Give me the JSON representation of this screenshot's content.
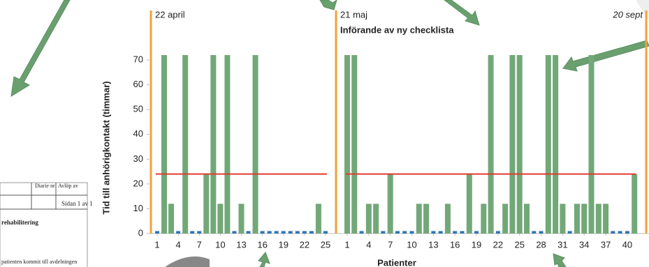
{
  "chart_data": {
    "type": "bar",
    "y_label": "Tid till anhörigkontakt (timmar)",
    "x_label": "Patienter",
    "ylim": [
      0,
      90
    ],
    "yticks": [
      0,
      10,
      20,
      30,
      40,
      50,
      60,
      70
    ],
    "reference_line": {
      "value": 24,
      "color": "#e03a2f"
    },
    "end_date": "20 sept",
    "marker_color": "#f2a23a",
    "segments": [
      {
        "date": "22 april",
        "xticks": [
          1,
          4,
          7,
          10,
          13,
          16,
          19,
          22,
          25
        ],
        "series": [
          {
            "color": "#72a878",
            "values": [
              null,
              72,
              12,
              null,
              72,
              null,
              null,
              24,
              72,
              12,
              72,
              null,
              12,
              null,
              72,
              null,
              null,
              null,
              null,
              null,
              null,
              null,
              null,
              12,
              null
            ]
          },
          {
            "color": "#2e75b6",
            "values": [
              1,
              null,
              null,
              1,
              null,
              1,
              1,
              null,
              null,
              null,
              null,
              1,
              null,
              1,
              null,
              1,
              1,
              1,
              1,
              1,
              1,
              1,
              1,
              null,
              1
            ]
          }
        ]
      },
      {
        "date": "21 maj",
        "annotation": "Införande av ny checklista",
        "xticks": [
          1,
          4,
          7,
          10,
          13,
          16,
          19,
          22,
          25,
          28,
          31,
          34,
          37,
          40
        ],
        "series": [
          {
            "color": "#72a878",
            "values": [
              72,
              72,
              null,
              12,
              12,
              null,
              24,
              null,
              null,
              null,
              12,
              12,
              null,
              null,
              12,
              null,
              null,
              24,
              null,
              12,
              72,
              null,
              12,
              72,
              72,
              12,
              null,
              null,
              72,
              72,
              12,
              null,
              12,
              12,
              72,
              12,
              12,
              null,
              null,
              null,
              24
            ]
          },
          {
            "color": "#2e75b6",
            "values": [
              null,
              null,
              1,
              null,
              null,
              1,
              null,
              1,
              1,
              1,
              null,
              null,
              1,
              1,
              null,
              1,
              1,
              null,
              1,
              null,
              null,
              1,
              null,
              null,
              null,
              null,
              1,
              1,
              null,
              null,
              null,
              1,
              null,
              null,
              null,
              null,
              null,
              1,
              1,
              1,
              null
            ]
          }
        ]
      }
    ]
  },
  "document": {
    "header": [
      "Diarie nr",
      "Avlöp av",
      "Sidan 1 av 1"
    ],
    "title": "rehabilitering",
    "line": "patienten kommit till avdelningen"
  }
}
